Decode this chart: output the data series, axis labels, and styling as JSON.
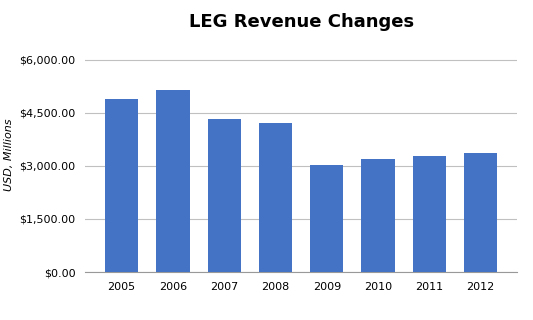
{
  "title": "LEG Revenue Changes",
  "categories": [
    "2005",
    "2006",
    "2007",
    "2008",
    "2009",
    "2010",
    "2011",
    "2012"
  ],
  "values": [
    4900,
    5150,
    4330,
    4200,
    3020,
    3180,
    3290,
    3360
  ],
  "bar_color": "#4472C4",
  "ylabel": "USD, Millions",
  "ylim": [
    0,
    6600
  ],
  "yticks": [
    0,
    1500,
    3000,
    4500,
    6000
  ],
  "ytick_labels": [
    "$0.00",
    "$1,500.00",
    "$3,000.00",
    "$4,500.00",
    "$6,000.00"
  ],
  "background_color": "#ffffff",
  "title_fontsize": 13,
  "ylabel_fontsize": 8,
  "tick_fontsize": 8,
  "grid_color": "#c0c0c0",
  "bar_width": 0.65
}
